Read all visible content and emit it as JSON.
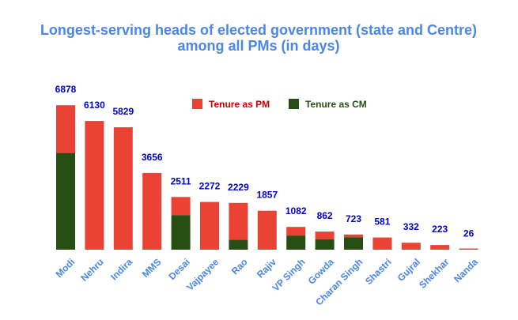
{
  "chart_data": {
    "type": "bar",
    "stacked": true,
    "title_lines": [
      "Longest-serving heads of elected government (state and Centre)",
      "among all PMs (in days)"
    ],
    "categories": [
      "Modi",
      "Nehru",
      "Indira",
      "MMS",
      "Desai",
      "Vajpayee",
      "Rao",
      "Rajiv",
      "VP Singh",
      "Gowda",
      "Charan Singh",
      "Shastri",
      "Gujral",
      "Shekhar",
      "Nanda"
    ],
    "totals": [
      6878,
      6130,
      5829,
      3656,
      2511,
      2272,
      2229,
      1857,
      1082,
      862,
      723,
      581,
      332,
      223,
      26
    ],
    "series": [
      {
        "name": "Tenure as CM",
        "values": [
          4607,
          0,
          0,
          0,
          1648,
          0,
          476,
          0,
          673,
          500,
          593,
          0,
          0,
          0,
          0
        ]
      },
      {
        "name": "Tenure as PM",
        "values": [
          2271,
          6130,
          5829,
          3656,
          863,
          2272,
          1753,
          1857,
          409,
          362,
          130,
          581,
          332,
          223,
          26
        ]
      }
    ],
    "ylim": [
      0,
      7000
    ],
    "grid": false,
    "legend_position": "top-right",
    "colors": {
      "pm": "#ea4335",
      "cm": "#274e13",
      "title": "#4a86e8",
      "total_label": "#0000cc",
      "tick_label": "#4a86e8",
      "legend_pm_text": "#cc0000",
      "legend_cm_text": "#274e13"
    }
  }
}
